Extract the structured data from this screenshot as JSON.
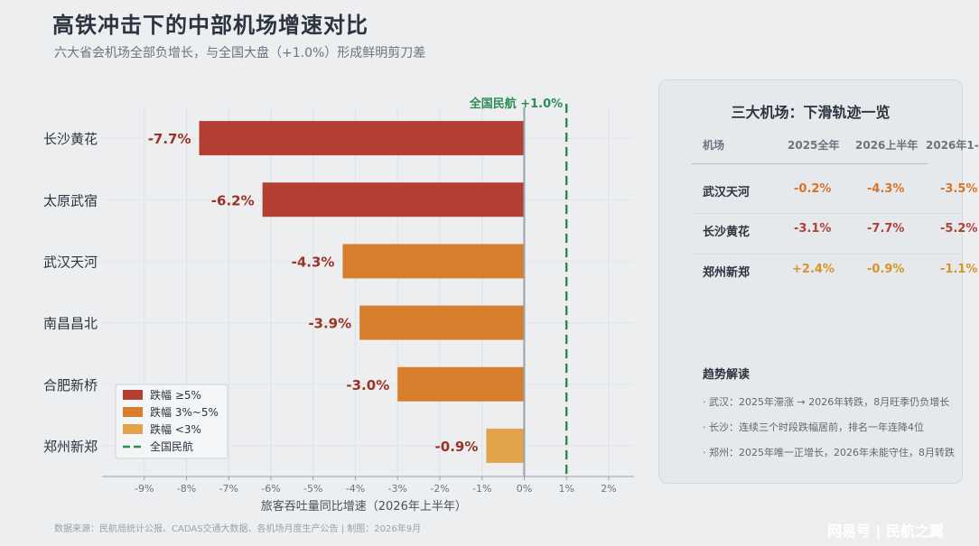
{
  "title": "高铁冲击下的中部机场增速对比",
  "subtitle": "六大省会机场全部负增长，与全国大盘（+1.0%）形成鲜明剪刀差",
  "chart_data": {
    "type": "bar",
    "orientation": "horizontal",
    "categories": [
      "长沙黄花",
      "太原武宿",
      "武汉天河",
      "南昌昌北",
      "合肥新桥",
      "郑州新郑"
    ],
    "values": [
      -7.7,
      -6.2,
      -4.3,
      -3.9,
      -3.0,
      -0.9
    ],
    "value_labels": [
      "-7.7%",
      "-6.2%",
      "-4.3%",
      "-3.9%",
      "-3.0%",
      "-0.9%"
    ],
    "categories_colors": [
      "#b33f33",
      "#b33f33",
      "#d87d2c",
      "#d87d2c",
      "#d87d2c",
      "#e3a449"
    ],
    "xlabel": "旅客吞吐量同比增速（2026年上半年）",
    "xlim": [
      -10,
      2.6
    ],
    "xticks": [
      -9,
      -8,
      -7,
      -6,
      -5,
      -4,
      -3,
      -2,
      -1,
      0,
      1,
      2
    ],
    "xtick_labels": [
      "-9%",
      "-8%",
      "-7%",
      "-6%",
      "-5%",
      "-4%",
      "-3%",
      "-2%",
      "-1%",
      "0%",
      "1%",
      "2%"
    ],
    "reference_line": {
      "value": 1.0,
      "label": "全国民航 +1.0%",
      "color": "#2e8b57"
    },
    "grid": true,
    "legend_position": "lower-left",
    "legend": [
      {
        "label": "跌幅 ≥5%",
        "color": "#b33f33",
        "kind": "box"
      },
      {
        "label": "跌幅 3%~5%",
        "color": "#d87d2c",
        "kind": "box"
      },
      {
        "label": "跌幅 <3%",
        "color": "#e3a449",
        "kind": "box"
      },
      {
        "label": "全国民航",
        "color": "#2e8b57",
        "kind": "line"
      }
    ]
  },
  "panel": {
    "title": "三大机场：下滑轨迹一览",
    "headers": [
      "机场",
      "2025全年",
      "2026上半年",
      "2026年1-"
    ],
    "rows": [
      {
        "name": "武汉天河",
        "cells": [
          {
            "text": "-0.2%",
            "color": "#d8742a"
          },
          {
            "text": "-4.3%",
            "color": "#d8742a"
          },
          {
            "text": "-3.5%",
            "color": "#d8742a"
          }
        ]
      },
      {
        "name": "长沙黄花",
        "cells": [
          {
            "text": "-3.1%",
            "color": "#b33f33"
          },
          {
            "text": "-7.7%",
            "color": "#b33f33"
          },
          {
            "text": "-5.2%",
            "color": "#b33f33"
          }
        ]
      },
      {
        "name": "郑州新郑",
        "cells": [
          {
            "text": "+2.4%",
            "color": "#d8942a"
          },
          {
            "text": "-0.9%",
            "color": "#d8942a"
          },
          {
            "text": "-1.1%",
            "color": "#d8942a"
          }
        ]
      }
    ],
    "insight_title": "趋势解读",
    "insights": [
      "· 武汉：2025年滞涨 → 2026年转跌，8月旺季仍负增长",
      "· 长沙：连续三个时段跌幅居前，排名一年连降4位",
      "· 郑州：2025年唯一正增长，2026年未能守住，8月转跌"
    ]
  },
  "source": "数据来源：民航局统计公报、CADAS交通大数据、各机场月度生产公告 | 制图：2026年9月",
  "brand": "网易号 | 民航之翼"
}
